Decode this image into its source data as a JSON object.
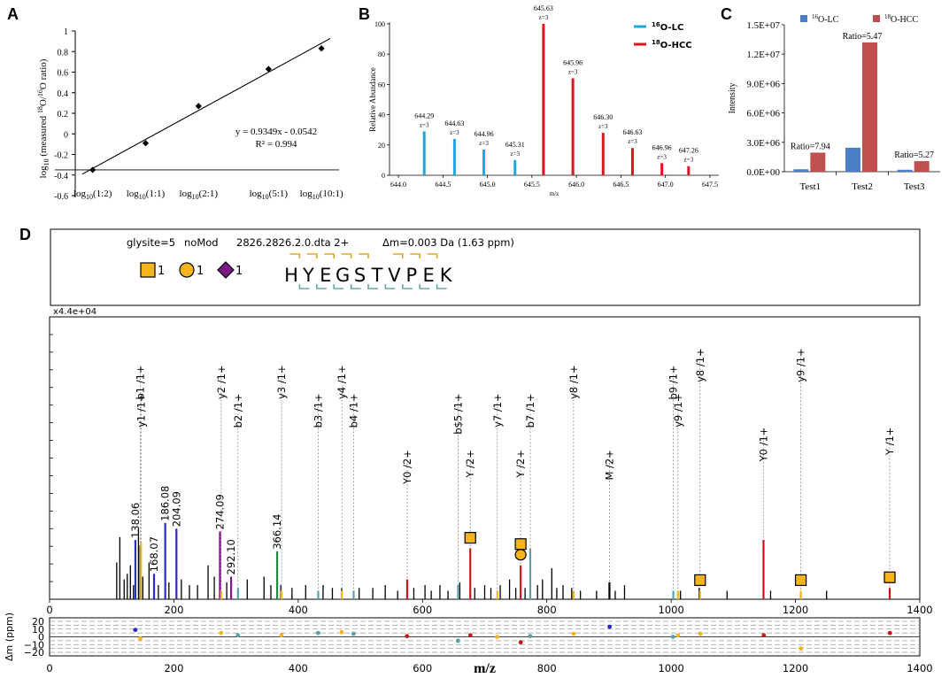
{
  "panels": {
    "a": "A",
    "b": "B",
    "c": "C",
    "d": "D"
  },
  "chart_data": [
    {
      "type": "scatter",
      "panel": "A",
      "ylabel_parts": [
        "log",
        "10",
        " (measured ",
        "18",
        "O/",
        "16",
        "O ratio)"
      ],
      "x_categories": [
        {
          "base": "log",
          "sub": "10",
          "arg": "(1:2)"
        },
        {
          "base": "log",
          "sub": "10",
          "arg": "(1:1)"
        },
        {
          "base": "log",
          "sub": "10",
          "arg": "(2:1)"
        },
        {
          "base": "log",
          "sub": "10",
          "arg": "(5:1)"
        },
        {
          "base": "log",
          "sub": "10",
          "arg": "(10:1)"
        }
      ],
      "x": [
        -0.301,
        0.0,
        0.301,
        0.699,
        1.0
      ],
      "y": [
        -0.35,
        -0.09,
        0.27,
        0.63,
        0.83
      ],
      "ylim": [
        -0.6,
        1.0
      ],
      "yticks": [
        -0.6,
        -0.4,
        -0.2,
        0,
        0.2,
        0.4,
        0.6,
        0.8,
        1
      ],
      "ytick_labels": [
        "-0.6",
        "-0.4",
        "-0.2",
        "0",
        "0.2",
        "0.4",
        "0.6",
        "0.8",
        "1"
      ],
      "fit": {
        "slope": 0.9349,
        "intercept": -0.0542
      },
      "equation": "y = 0.9349x - 0.0542",
      "r2": "R² = 0.994"
    },
    {
      "type": "bar",
      "panel": "B",
      "ylabel": "Relative Abundance",
      "xlabel": "m/z",
      "xlim": [
        643.9,
        647.6
      ],
      "ylim": [
        0,
        100
      ],
      "xticks": [
        644.0,
        644.5,
        645.0,
        645.5,
        646.0,
        646.5,
        647.0,
        647.5
      ],
      "xtick_labels": [
        "644.0",
        "644.5",
        "645.0",
        "645.5",
        "646.0",
        "646.5",
        "647.0",
        "647.5"
      ],
      "yticks": [
        0,
        20,
        40,
        60,
        80,
        100
      ],
      "ytick_labels": [
        "0",
        "20",
        "40",
        "60",
        "80",
        "100"
      ],
      "legend": [
        {
          "sup": "16",
          "text": "O-LC",
          "color": "#1aa7e0"
        },
        {
          "sup": "18",
          "text": "O-HCC",
          "color": "#e0151b"
        }
      ],
      "series": [
        {
          "name": "16O-LC",
          "color": "#1aa7e0",
          "peaks": [
            {
              "mz": 644.29,
              "value": 29,
              "label": "644.29",
              "z": "z=3"
            },
            {
              "mz": 644.63,
              "value": 24,
              "label": "644.63",
              "z": "z=3"
            },
            {
              "mz": 644.96,
              "value": 17,
              "label": "644.96",
              "z": "z=3"
            },
            {
              "mz": 645.31,
              "value": 10,
              "label": "645.31",
              "z": "z=3"
            },
            {
              "mz": 645.63,
              "value": 4
            },
            {
              "mz": 645.96,
              "value": 2
            }
          ]
        },
        {
          "name": "18O-HCC",
          "color": "#e0151b",
          "peaks": [
            {
              "mz": 645.63,
              "value": 100,
              "label": "645.63",
              "z": "z=3"
            },
            {
              "mz": 645.96,
              "value": 64,
              "label": "645.96",
              "z": "z=3"
            },
            {
              "mz": 646.3,
              "value": 28,
              "label": "646.30",
              "z": "z=3"
            },
            {
              "mz": 646.63,
              "value": 18,
              "label": "646.63",
              "z": "z=3"
            },
            {
              "mz": 646.96,
              "value": 8,
              "label": "646.96",
              "z": "z=3"
            },
            {
              "mz": 647.26,
              "value": 6,
              "label": "647.26",
              "z": "z=3"
            }
          ]
        }
      ]
    },
    {
      "type": "bar",
      "panel": "C",
      "ylabel": "Intensity",
      "categories": [
        "Test1",
        "Test2",
        "Test3"
      ],
      "ylim": [
        0,
        15000000
      ],
      "yticks": [
        0,
        3000000,
        6000000,
        9000000,
        12000000,
        15000000
      ],
      "ytick_labels": [
        "0.0E+00",
        "3.0E+06",
        "6.0E+06",
        "9.0E+06",
        "1.2E+07",
        "1.5E+07"
      ],
      "legend": [
        {
          "sup": "16",
          "text": "O-LC",
          "color": "#4a7ec7"
        },
        {
          "sup": "18",
          "text": "O-HCC",
          "color": "#c0504d"
        }
      ],
      "series": [
        {
          "name": "16O-LC",
          "color": "#4a7ec7",
          "values": [
            250000,
            2450000,
            200000
          ]
        },
        {
          "name": "18O-HCC",
          "color": "#c0504d",
          "values": [
            1950000,
            13200000,
            1080000
          ]
        }
      ],
      "ratios": [
        "Ratio=7.94",
        "Ratio=5.47",
        "Ratio=5.27"
      ]
    },
    {
      "type": "bar",
      "panel": "D",
      "header": {
        "glysite": "glysite=5",
        "mod": "noMod",
        "scan": "2826.2826.2.0.dta 2+",
        "delta": "Δm=0.003 Da (1.63 ppm)",
        "glycans": [
          {
            "shape": "square",
            "color": "#f5b41c",
            "count": "1"
          },
          {
            "shape": "circle",
            "color": "#f5b41c",
            "count": "1"
          },
          {
            "shape": "diamond",
            "color": "#7b1a87",
            "count": "1"
          }
        ],
        "sequence": [
          "H",
          "Y",
          "E",
          "G",
          "S",
          "T",
          "V",
          "P",
          "E",
          "K"
        ],
        "glyco_index": 4,
        "b_ions_after": [
          1,
          2,
          3,
          4,
          5,
          7,
          8,
          9
        ],
        "y_ions_before": [
          1,
          2,
          3,
          4,
          5,
          6,
          7,
          8,
          9
        ]
      },
      "scale_label": "x4.4e+04",
      "xlabel": "m/z",
      "ylabel": "Δm (ppm)",
      "xlim": [
        0,
        1400
      ],
      "xticks": [
        0,
        200,
        400,
        600,
        800,
        1000,
        1200,
        1400
      ],
      "xtick_labels": [
        "0",
        "200",
        "400",
        "600",
        "800",
        "1000",
        "1200",
        "1400"
      ],
      "ppm_ticks": [
        20,
        10,
        0,
        -10,
        -20
      ],
      "ppm_tick_labels": [
        "20",
        "10",
        "0",
        "−10",
        "−20"
      ],
      "noise": [
        [
          108,
          13
        ],
        [
          113,
          22
        ],
        [
          120,
          7
        ],
        [
          125,
          9
        ],
        [
          130,
          12
        ],
        [
          135,
          5
        ],
        [
          143,
          25
        ],
        [
          150,
          8
        ],
        [
          160,
          13
        ],
        [
          175,
          5
        ],
        [
          192,
          6
        ],
        [
          212,
          7
        ],
        [
          225,
          5
        ],
        [
          238,
          5
        ],
        [
          255,
          12
        ],
        [
          265,
          8
        ],
        [
          285,
          6
        ],
        [
          318,
          7
        ],
        [
          345,
          8
        ],
        [
          356,
          5
        ],
        [
          372,
          5
        ],
        [
          390,
          4
        ],
        [
          412,
          5
        ],
        [
          440,
          5
        ],
        [
          455,
          4
        ],
        [
          470,
          4
        ],
        [
          498,
          4
        ],
        [
          520,
          4
        ],
        [
          540,
          5
        ],
        [
          560,
          3
        ],
        [
          586,
          4
        ],
        [
          604,
          5
        ],
        [
          614,
          3
        ],
        [
          628,
          5
        ],
        [
          641,
          3
        ],
        [
          660,
          6
        ],
        [
          684,
          4
        ],
        [
          700,
          5
        ],
        [
          710,
          4
        ],
        [
          725,
          5
        ],
        [
          740,
          7
        ],
        [
          750,
          4
        ],
        [
          765,
          4
        ],
        [
          785,
          5
        ],
        [
          793,
          7
        ],
        [
          808,
          11
        ],
        [
          816,
          4
        ],
        [
          826,
          5
        ],
        [
          840,
          4
        ],
        [
          854,
          3
        ],
        [
          880,
          3
        ],
        [
          910,
          3
        ],
        [
          925,
          5
        ],
        [
          1015,
          3
        ],
        [
          1045,
          4
        ],
        [
          1090,
          3
        ],
        [
          1160,
          3
        ],
        [
          1250,
          3
        ]
      ],
      "peaks": [
        {
          "mz": 138.06,
          "height": 21,
          "color": "#2a2ac8",
          "label": "138.06"
        },
        {
          "mz": 146.07,
          "height": 19,
          "color": "#2a2ac8",
          "name": "b1 /1+",
          "top": 18,
          "line_color": "#999999",
          "label_color": "#000000"
        },
        {
          "mz": 147.11,
          "height": 20,
          "color": "#f5b41c",
          "name": "y1 /1+",
          "top": 28,
          "line_color": "#999999",
          "label_color": "#000000"
        },
        {
          "mz": 168.07,
          "height": 9,
          "color": "#2a2ac8",
          "label": "168.07"
        },
        {
          "mz": 186.08,
          "height": 27,
          "color": "#2a2ac8",
          "label": "186.08"
        },
        {
          "mz": 204.09,
          "height": 25,
          "color": "#2a2ac8",
          "label": "204.09"
        },
        {
          "mz": 274.09,
          "height": 24,
          "color": "#7b1a87",
          "label": "274.09"
        },
        {
          "mz": 276.12,
          "height": 3,
          "color": "#f5b41c",
          "name": "y2 /1+",
          "top": 18,
          "line_color": "#999999",
          "label_color": "#000000"
        },
        {
          "mz": 292.1,
          "height": 8,
          "color": "#7b1a87",
          "label": "292.10"
        },
        {
          "mz": 303.12,
          "height": 4,
          "color": "#54a2a8",
          "name": "b2 /1+",
          "top": 28,
          "line_color": "#999999",
          "label_color": "#000000"
        },
        {
          "mz": 366.14,
          "height": 17,
          "color": "#1f8a3a",
          "label": "366.14"
        },
        {
          "mz": 373.2,
          "height": 3,
          "color": "#f5b41c",
          "name": "y3 /1+",
          "top": 18,
          "line_color": "#999999",
          "label_color": "#000000"
        },
        {
          "mz": 432.16,
          "height": 3,
          "color": "#54a2a8",
          "name": "b3 /1+",
          "top": 28,
          "line_color": "#999999",
          "label_color": "#000000"
        },
        {
          "mz": 470.25,
          "height": 3,
          "color": "#f5b41c",
          "name": "y4 /1+",
          "top": 18,
          "line_color": "#999999",
          "label_color": "#000000"
        },
        {
          "mz": 489.18,
          "height": 3,
          "color": "#54a2a8",
          "name": "b4 /1+",
          "top": 28,
          "line_color": "#999999",
          "label_color": "#000000"
        },
        {
          "mz": 575.3,
          "height": 7,
          "color": "#cc1414",
          "name": "Y0 /2+",
          "top": 48,
          "line_color": "#999999",
          "label_color": "#000000"
        },
        {
          "mz": 657.25,
          "height": 5,
          "color": "#54a2a8",
          "name": "b$5 /1+",
          "top": 28,
          "line_color": "#999999",
          "label_color": "#000000"
        },
        {
          "mz": 676.83,
          "height": 18,
          "color": "#cc1414",
          "name": "Y /2+",
          "top": 48,
          "line_color": "#999999",
          "label_color": "#000000",
          "glycan": [
            "square"
          ]
        },
        {
          "mz": 720.4,
          "height": 3,
          "color": "#f5b41c",
          "name": "y7 /1+",
          "top": 28,
          "line_color": "#999999",
          "label_color": "#000000"
        },
        {
          "mz": 757.86,
          "height": 12,
          "color": "#cc1414",
          "name": "Y /2+",
          "top": 48,
          "line_color": "#999999",
          "label_color": "#000000",
          "glycan": [
            "square",
            "circle"
          ]
        },
        {
          "mz": 773.34,
          "height": 18,
          "color": "#54a2a8",
          "name": "b7 /1+",
          "top": 28,
          "line_color": "#999999",
          "label_color": "#000000"
        },
        {
          "mz": 843.0,
          "height": 3,
          "color": "#f5b41c",
          "name": "y8 /1+",
          "top": 18,
          "line_color": "#999999",
          "label_color": "#000000"
        },
        {
          "mz": 900.7,
          "height": 6,
          "color": "#000000",
          "name": "M /2+",
          "top": 48,
          "line_color": "#999999",
          "label_color": "#000000"
        },
        {
          "mz": 1003.5,
          "height": 3,
          "color": "#54a2a8",
          "name": "b9 /1+",
          "top": 18,
          "line_color": "#999999",
          "label_color": "#000000"
        },
        {
          "mz": 1011.0,
          "height": 3,
          "color": "#f5b41c",
          "name": "y9 /1+",
          "top": 28,
          "line_color": "#999999",
          "label_color": "#000000"
        },
        {
          "mz": 1046.5,
          "height": 3,
          "color": "#f5b41c",
          "name": "y8 /1+",
          "top": 12,
          "line_color": "#999999",
          "label_color": "#000000",
          "glycan": [
            "square"
          ]
        },
        {
          "mz": 1148.6,
          "height": 21,
          "color": "#cc1414",
          "name": "Y0 /1+",
          "top": 40,
          "line_color": "#999999",
          "label_color": "#000000"
        },
        {
          "mz": 1208.6,
          "height": 3,
          "color": "#f5b41c",
          "name": "y9 /1+",
          "top": 12,
          "line_color": "#999999",
          "label_color": "#000000",
          "glycan": [
            "square"
          ]
        },
        {
          "mz": 1351.6,
          "height": 4,
          "color": "#cc1414",
          "name": "Y /1+",
          "top": 40,
          "line_color": "#999999",
          "label_color": "#000000",
          "glycan": [
            "square"
          ]
        }
      ],
      "errors": [
        {
          "mz": 138,
          "ppm": 9,
          "color": "#2a2ac8"
        },
        {
          "mz": 146,
          "ppm": -2,
          "color": "#f5b41c"
        },
        {
          "mz": 276,
          "ppm": 5,
          "color": "#f5b41c"
        },
        {
          "mz": 303,
          "ppm": 2,
          "color": "#54a2a8"
        },
        {
          "mz": 373,
          "ppm": 2,
          "color": "#f5b41c"
        },
        {
          "mz": 432,
          "ppm": 5,
          "color": "#54a2a8"
        },
        {
          "mz": 470,
          "ppm": 6,
          "color": "#f5b41c"
        },
        {
          "mz": 489,
          "ppm": 4,
          "color": "#54a2a8"
        },
        {
          "mz": 575,
          "ppm": 1,
          "color": "#cc1414"
        },
        {
          "mz": 657,
          "ppm": -5,
          "color": "#54a2a8"
        },
        {
          "mz": 677,
          "ppm": 2,
          "color": "#cc1414"
        },
        {
          "mz": 720,
          "ppm": 0,
          "color": "#f5b41c"
        },
        {
          "mz": 758,
          "ppm": -7,
          "color": "#cc1414"
        },
        {
          "mz": 773,
          "ppm": 1,
          "color": "#54a2a8"
        },
        {
          "mz": 843,
          "ppm": 4,
          "color": "#f5b41c"
        },
        {
          "mz": 901,
          "ppm": 13,
          "color": "#2a2ac8"
        },
        {
          "mz": 1003,
          "ppm": 0,
          "color": "#54a2a8"
        },
        {
          "mz": 1011,
          "ppm": 2,
          "color": "#f5b41c"
        },
        {
          "mz": 1047,
          "ppm": 4,
          "color": "#f5b41c"
        },
        {
          "mz": 1149,
          "ppm": 2,
          "color": "#cc1414"
        },
        {
          "mz": 1209,
          "ppm": -15,
          "color": "#f5b41c"
        },
        {
          "mz": 1352,
          "ppm": 5,
          "color": "#cc1414"
        }
      ]
    }
  ]
}
